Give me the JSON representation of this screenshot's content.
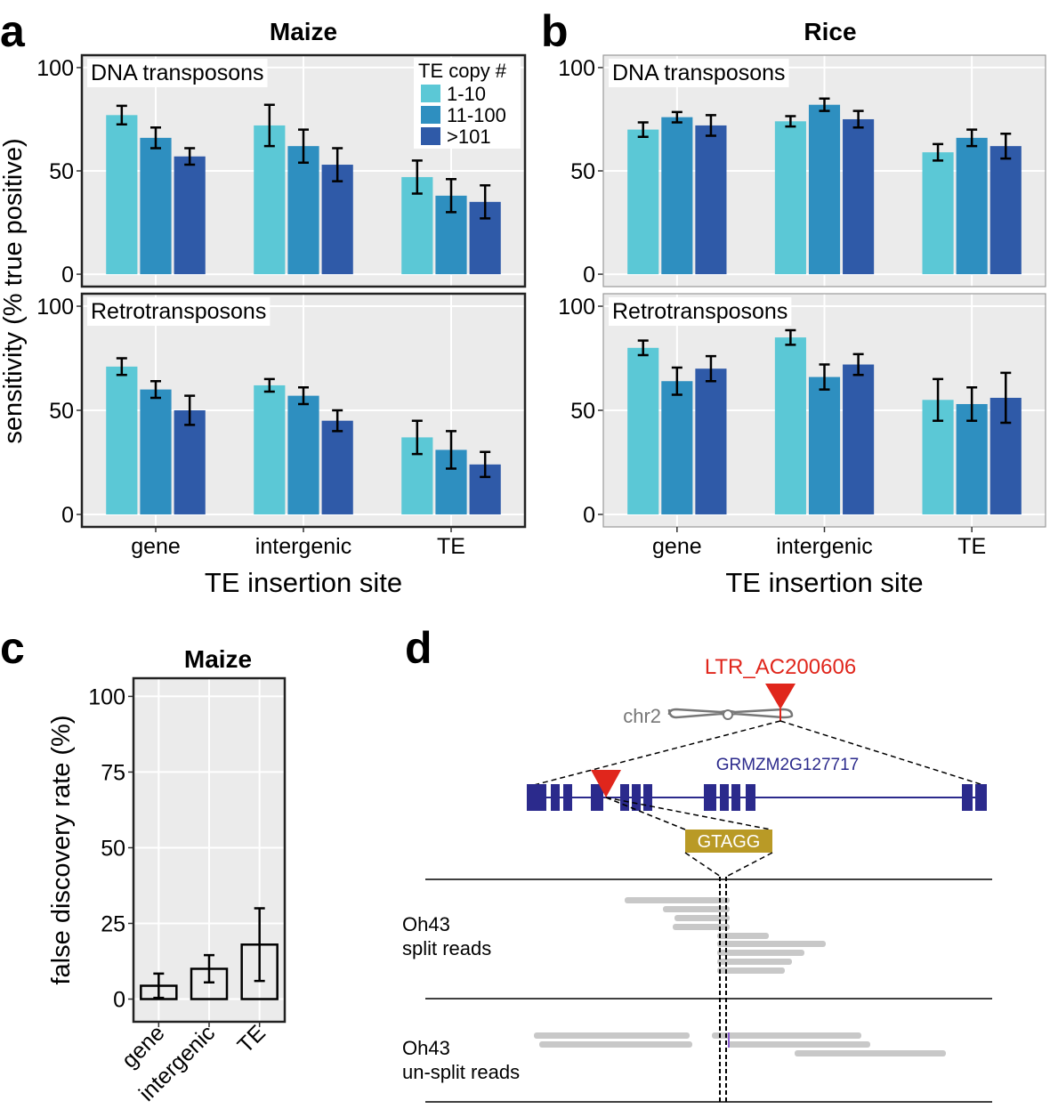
{
  "panel_labels": [
    "a",
    "b",
    "c",
    "d"
  ],
  "chart_data": [
    {
      "type": "bar",
      "title": "Maize",
      "ylabel": "sensitivity (% true positive)",
      "xlabel": "TE insertion site",
      "categories": [
        "gene",
        "intergenic",
        "TE"
      ],
      "legend_title": "TE copy #",
      "series": [
        {
          "name": "1-10",
          "color": "#5bc8d6"
        },
        {
          "name": "11-100",
          "color": "#2e8fc0"
        },
        {
          "name": ">101",
          "color": "#2f5aa8"
        }
      ],
      "facets": [
        {
          "label": "DNA transposons",
          "values": [
            [
              77,
              72,
              47
            ],
            [
              66,
              62,
              38
            ],
            [
              57,
              53,
              35
            ]
          ],
          "errors": [
            [
              4.5,
              10,
              8
            ],
            [
              5,
              8,
              8
            ],
            [
              4,
              8,
              8
            ]
          ]
        },
        {
          "label": "Retrotransposons",
          "values": [
            [
              71,
              62,
              37
            ],
            [
              60,
              57,
              31
            ],
            [
              50,
              45,
              24
            ]
          ],
          "errors": [
            [
              4,
              3,
              8
            ],
            [
              4,
              4,
              9
            ],
            [
              7,
              5,
              6
            ]
          ]
        }
      ],
      "ylim": [
        -6,
        106
      ],
      "yticks": [
        0,
        50,
        100
      ],
      "grid": true
    },
    {
      "type": "bar",
      "title": "Rice",
      "xlabel": "TE insertion site",
      "categories": [
        "gene",
        "intergenic",
        "TE"
      ],
      "series": [
        {
          "color": "#5bc8d6"
        },
        {
          "color": "#2e8fc0"
        },
        {
          "color": "#2f5aa8"
        }
      ],
      "facets": [
        {
          "label": "DNA transposons",
          "values": [
            [
              70,
              74,
              59
            ],
            [
              76,
              82,
              66
            ],
            [
              72,
              75,
              62
            ]
          ],
          "errors": [
            [
              3.5,
              2.5,
              4
            ],
            [
              2.5,
              3,
              4
            ],
            [
              5,
              4,
              6
            ]
          ]
        },
        {
          "label": "Retrotransposons",
          "values": [
            [
              80,
              85,
              55
            ],
            [
              64,
              66,
              53
            ],
            [
              70,
              72,
              56
            ]
          ],
          "errors": [
            [
              3.5,
              3.5,
              10
            ],
            [
              6.5,
              6,
              8
            ],
            [
              6,
              5,
              12
            ]
          ]
        }
      ],
      "ylim": [
        -6,
        106
      ],
      "yticks": [
        0,
        50,
        100
      ],
      "grid": true
    },
    {
      "type": "bar",
      "title": "Maize",
      "ylabel": "false discovery rate (%)",
      "categories": [
        "gene",
        "intergenic",
        "TE"
      ],
      "values": [
        4.4,
        10,
        18
      ],
      "errors": [
        4,
        4.5,
        12
      ],
      "fill": "none",
      "edgecolor": "#000000",
      "ylim": [
        -7.5,
        106
      ],
      "yticks": [
        0,
        25,
        50,
        75,
        100
      ],
      "grid": true
    }
  ],
  "diagram": {
    "insertion_label": "LTR_AC200606",
    "chromosome_label": "chr2",
    "gene_label": "GRMZM2G127717",
    "motif": "GTAGG",
    "tracks": [
      {
        "lines": [
          "Oh43",
          "split reads"
        ]
      },
      {
        "lines": [
          "Oh43",
          "un-split reads"
        ]
      }
    ]
  }
}
